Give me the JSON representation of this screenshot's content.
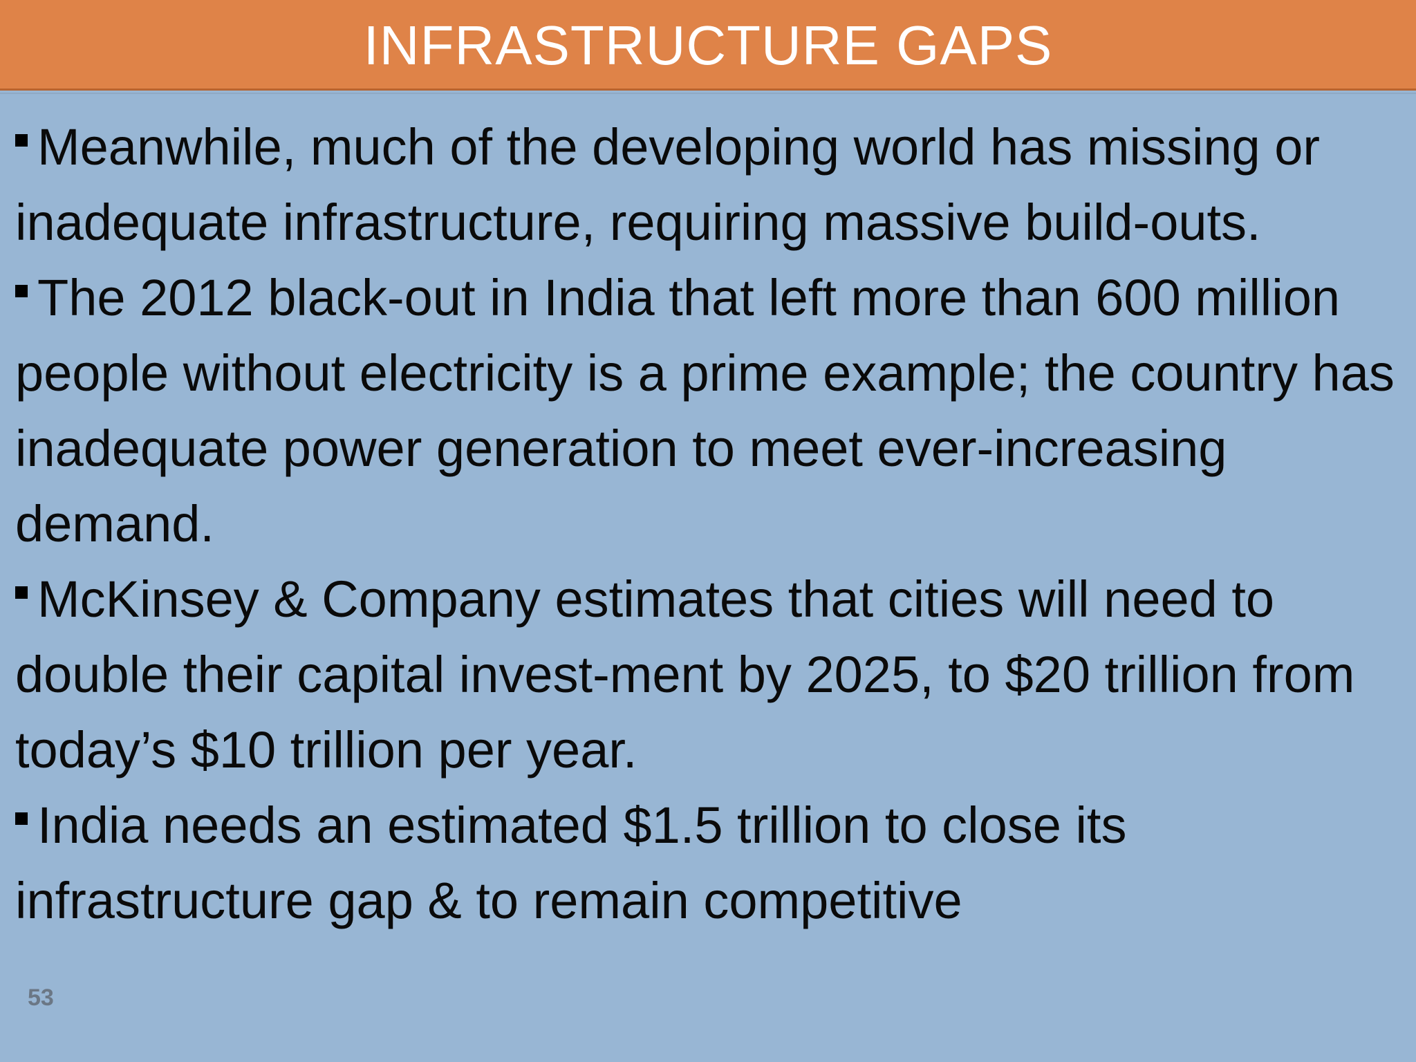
{
  "slide": {
    "title": "INFRASTRUCTURE GAPS",
    "bullets": [
      "Meanwhile, much of the developing world has missing or inadequate infrastructure, requiring massive build-outs.",
      "The 2012 black-out in India that left more than 600 million people without electricity is a prime example; the country has inadequate power generation to meet ever-increasing demand.",
      "McKinsey & Company estimates that cities will need to double their capital invest-ment by 2025, to $20 trillion from today’s $10 trillion per year.",
      "India needs an estimated $1.5 trillion to close its infrastructure  gap & to remain competitive"
    ],
    "page_number": "53"
  },
  "colors": {
    "title_bar": "#DF8348",
    "title_text": "#FFFFFF",
    "body_background": "#98B6D4",
    "body_text": "#0A0A0A"
  }
}
